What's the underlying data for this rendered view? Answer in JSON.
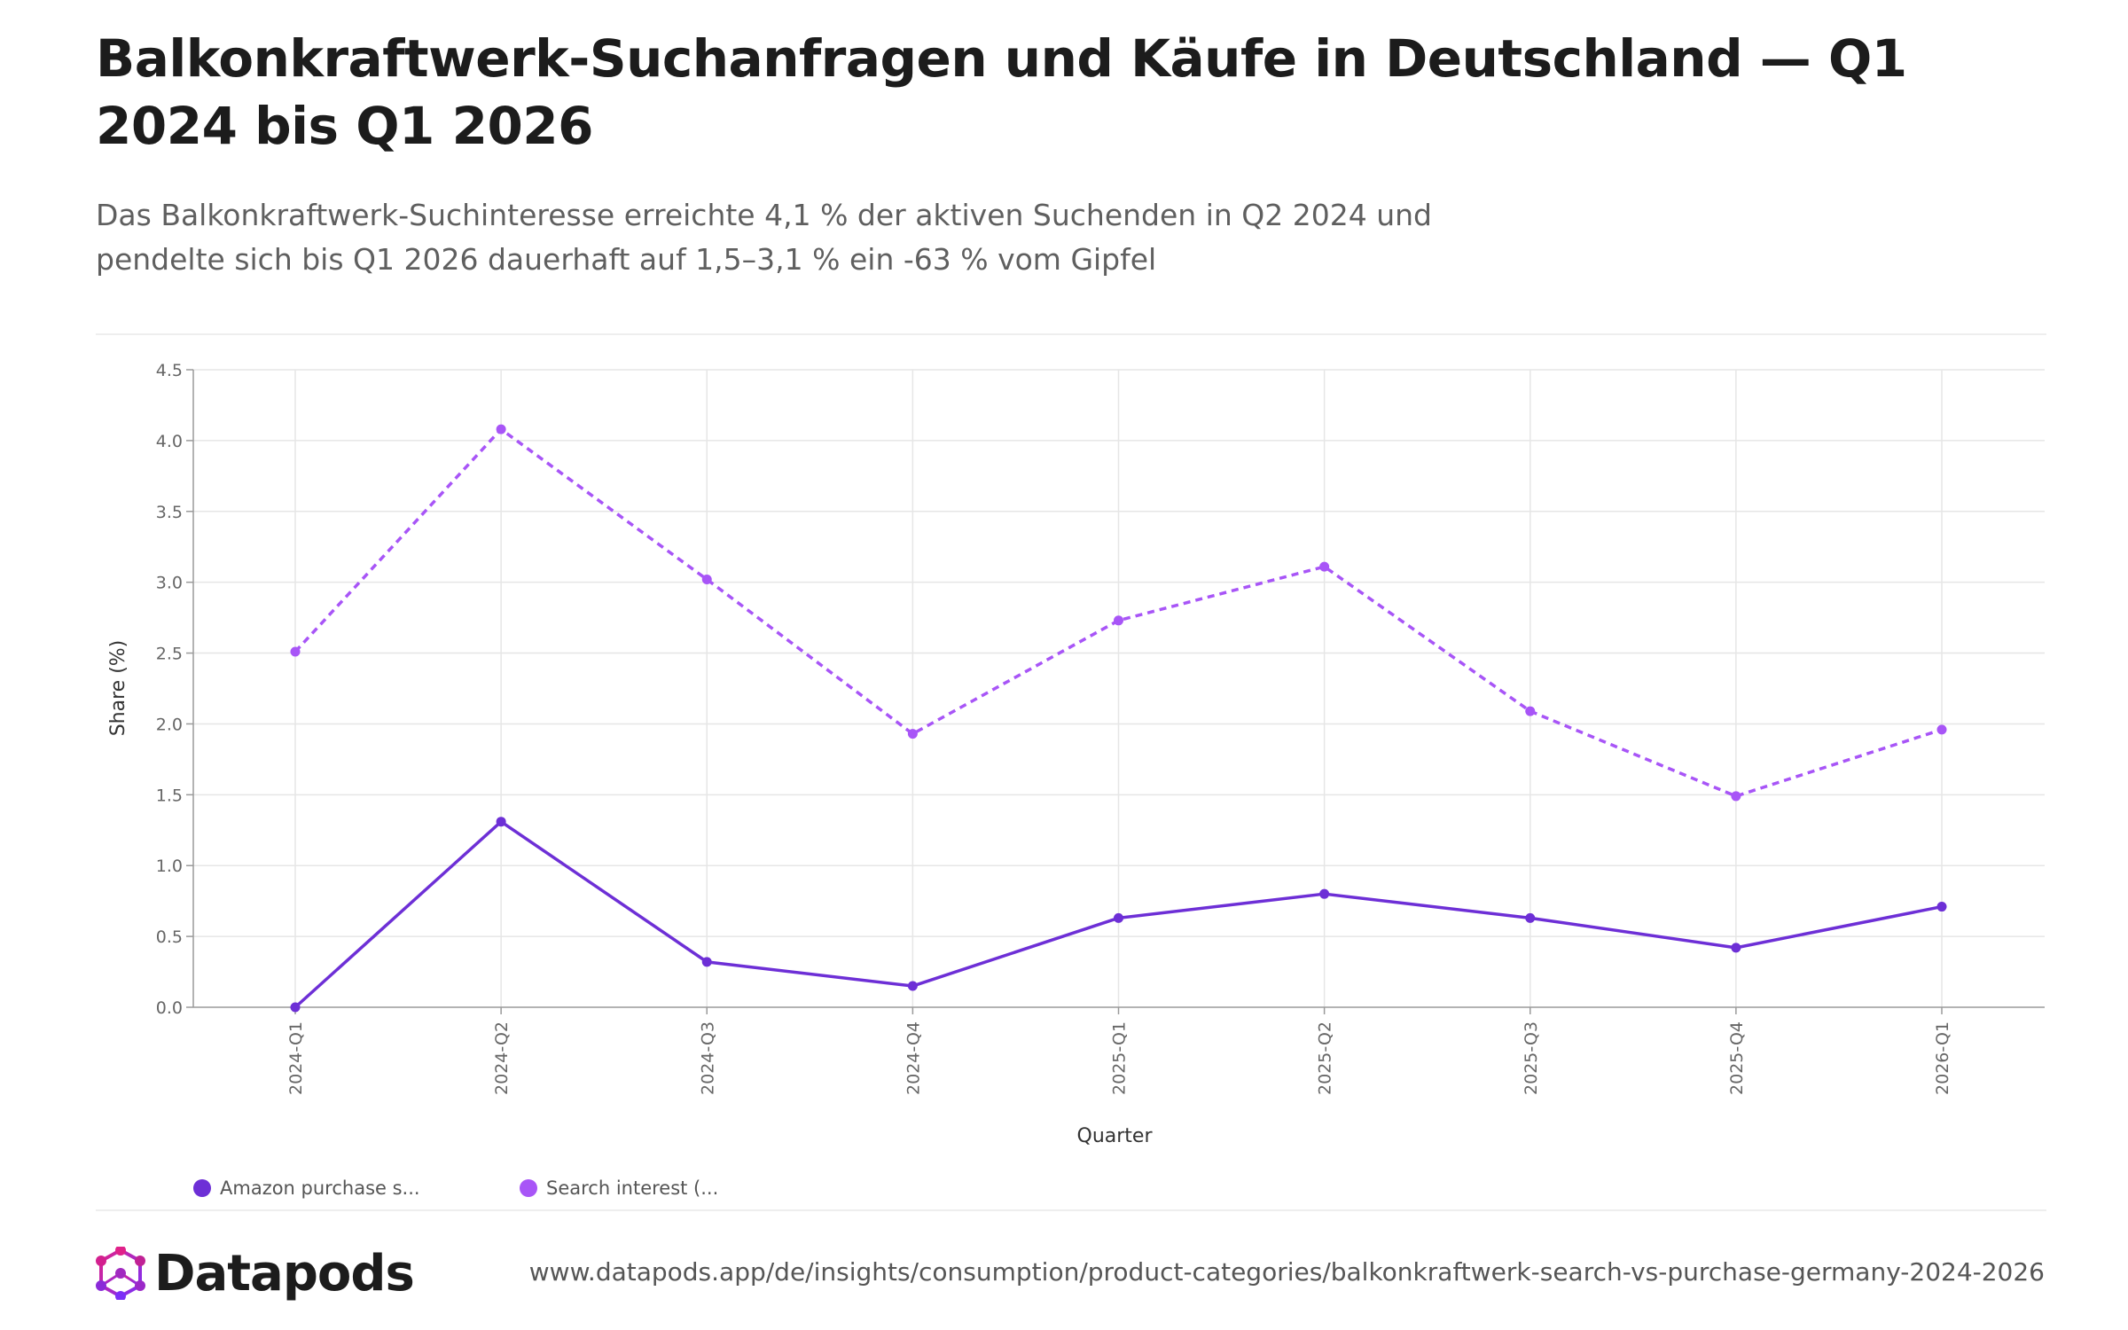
{
  "title": "Balkonkraftwerk-Suchanfragen und Käufe in Deutschland — Q1 2024 bis Q1 2026",
  "subtitle": "Das Balkonkraftwerk-Suchinteresse erreichte 4,1 % der aktiven Suchenden in Q2 2024 und pendelte sich bis Q1 2026 dauerhaft auf 1,5–3,1 % ein -63 % vom Gipfel",
  "footer": {
    "brand": "Datapods",
    "url": "www.datapods.app/de/insights/consumption/product-categories/balkonkraftwerk-search-vs-purchase-germany-2024-2026"
  },
  "colors": {
    "purchase": "#6d2fd6",
    "search": "#a855f7",
    "grid": "#e6e6e6",
    "axis": "#9a9a9a"
  },
  "chart_data": {
    "type": "line",
    "title": "",
    "xlabel": "Quarter",
    "ylabel": "Share (%)",
    "ylim": [
      0,
      4.5
    ],
    "yticks": [
      "0.0",
      "0.5",
      "1.0",
      "1.5",
      "2.0",
      "2.5",
      "3.0",
      "3.5",
      "4.0",
      "4.5"
    ],
    "grid": true,
    "legend_position": "bottom-left",
    "categories": [
      "2024-Q1",
      "2024-Q2",
      "2024-Q3",
      "2024-Q4",
      "2025-Q1",
      "2025-Q2",
      "2025-Q3",
      "2025-Q4",
      "2026-Q1"
    ],
    "series": [
      {
        "name": "Amazon purchase s...",
        "style": "solid",
        "values": [
          0.0,
          1.31,
          0.32,
          0.15,
          0.63,
          0.8,
          0.63,
          0.42,
          0.71
        ]
      },
      {
        "name": "Search interest (...",
        "style": "dashed",
        "values": [
          2.51,
          4.08,
          3.02,
          1.93,
          2.73,
          3.11,
          2.09,
          1.49,
          1.96
        ]
      }
    ]
  }
}
